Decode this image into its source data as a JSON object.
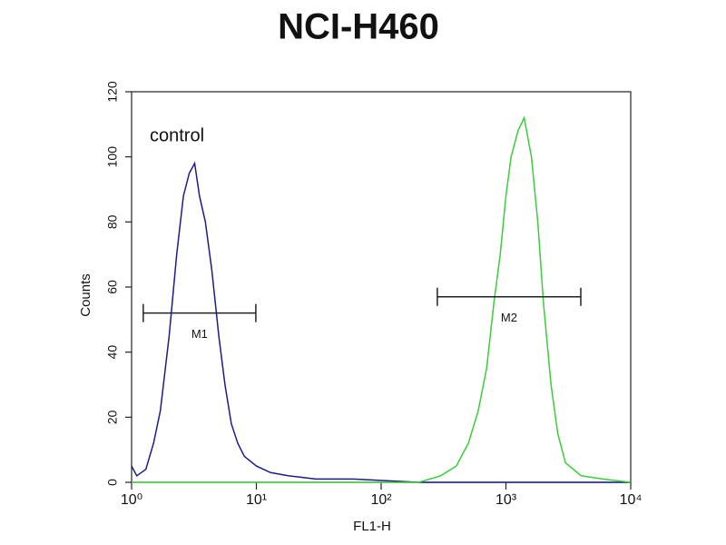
{
  "chart_data": {
    "type": "line",
    "title": "NCI-H460",
    "x_label": "FL1-H",
    "y_label": "Counts",
    "annotation": "control",
    "x_scale": "log",
    "xlim": [
      1,
      10000
    ],
    "xticks": [
      {
        "value": 1,
        "label": "10⁰"
      },
      {
        "value": 10,
        "label": "10¹"
      },
      {
        "value": 100,
        "label": "10²"
      },
      {
        "value": 1000,
        "label": "10³"
      },
      {
        "value": 10000,
        "label": "10⁴"
      }
    ],
    "ylim": [
      0,
      120
    ],
    "yticks": [
      0,
      20,
      40,
      60,
      80,
      100,
      120
    ],
    "series": [
      {
        "color": "#1c1c8a",
        "x": [
          1,
          1.1,
          1.3,
          1.5,
          1.7,
          2.0,
          2.3,
          2.6,
          2.9,
          3.2,
          3.5,
          3.9,
          4.4,
          5.0,
          5.6,
          6.3,
          7.1,
          8,
          10,
          13,
          18,
          30,
          60,
          200,
          1000,
          10000
        ],
        "values": [
          5,
          2,
          4,
          12,
          22,
          45,
          70,
          88,
          95,
          98,
          88,
          80,
          65,
          45,
          30,
          18,
          12,
          8,
          5,
          3,
          2,
          1,
          1,
          0,
          0,
          0
        ]
      },
      {
        "color": "#3ccc3c",
        "x": [
          1,
          10,
          100,
          200,
          300,
          400,
          500,
          600,
          700,
          800,
          900,
          1000,
          1100,
          1250,
          1400,
          1600,
          1800,
          2000,
          2300,
          2600,
          3000,
          4000,
          6000,
          10000
        ],
        "values": [
          0,
          0,
          0,
          0,
          2,
          5,
          12,
          22,
          35,
          55,
          70,
          88,
          100,
          108,
          112,
          100,
          80,
          55,
          30,
          15,
          6,
          2,
          1,
          0
        ]
      }
    ],
    "markers": [
      {
        "label": "M1",
        "x": [
          1.24,
          9.9
        ],
        "y": 52
      },
      {
        "label": "M2",
        "x": [
          282,
          3981
        ],
        "y": 57
      }
    ]
  }
}
